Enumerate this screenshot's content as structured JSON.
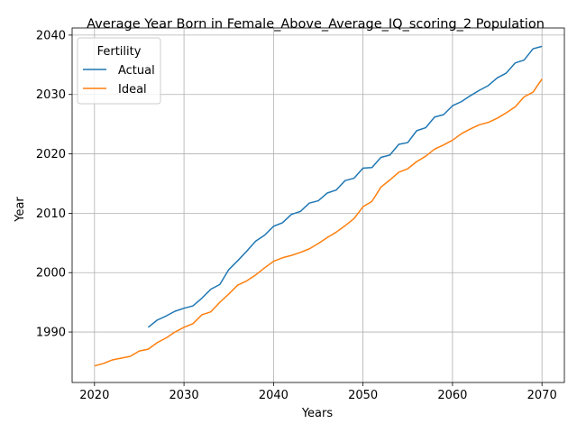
{
  "chart_data": {
    "type": "line",
    "title": "Average Year Born in Female_Above_Average_IQ_scoring_2 Population",
    "xlabel": "Years",
    "ylabel": "Year",
    "xlim": [
      2017.5,
      2072.5
    ],
    "ylim": [
      1981.5,
      2041.2
    ],
    "xticks": [
      2020,
      2030,
      2040,
      2050,
      2060,
      2070
    ],
    "yticks": [
      1990,
      2000,
      2010,
      2020,
      2030,
      2040
    ],
    "grid": true,
    "legend": {
      "title": "Fertility",
      "placement": "top-left"
    },
    "series": [
      {
        "name": "Actual",
        "color": "#1f77b4",
        "x": [
          2026,
          2027,
          2028,
          2029,
          2030,
          2031,
          2032,
          2033,
          2034,
          2035,
          2036,
          2037,
          2038,
          2039,
          2040,
          2041,
          2042,
          2043,
          2044,
          2045,
          2046,
          2047,
          2048,
          2049,
          2050,
          2051,
          2052,
          2053,
          2054,
          2055,
          2056,
          2057,
          2058,
          2059,
          2060,
          2061,
          2062,
          2063,
          2064,
          2065,
          2066,
          2067,
          2068,
          2069,
          2070
        ],
        "y": [
          1990.8,
          1992.0,
          1992.7,
          1993.5,
          1994.0,
          1994.4,
          1995.7,
          1997.2,
          1998.0,
          2000.5,
          2002.0,
          2003.6,
          2005.3,
          2006.3,
          2007.8,
          2008.4,
          2009.8,
          2010.3,
          2011.7,
          2012.1,
          2013.4,
          2013.9,
          2015.5,
          2015.9,
          2017.6,
          2017.7,
          2019.4,
          2019.8,
          2021.6,
          2021.9,
          2023.9,
          2024.4,
          2026.2,
          2026.6,
          2028.1,
          2028.8,
          2029.8,
          2030.7,
          2031.5,
          2032.8,
          2033.6,
          2035.3,
          2035.8,
          2037.7,
          2038.1
        ]
      },
      {
        "name": "Ideal",
        "color": "#ff7f0e",
        "x": [
          2020,
          2021,
          2022,
          2023,
          2024,
          2025,
          2026,
          2027,
          2028,
          2029,
          2030,
          2031,
          2032,
          2033,
          2034,
          2035,
          2036,
          2037,
          2038,
          2039,
          2040,
          2041,
          2042,
          2043,
          2044,
          2045,
          2046,
          2047,
          2048,
          2049,
          2050,
          2051,
          2052,
          2053,
          2054,
          2055,
          2056,
          2057,
          2058,
          2059,
          2060,
          2061,
          2062,
          2063,
          2064,
          2065,
          2066,
          2067,
          2068,
          2069,
          2070
        ],
        "y": [
          1984.3,
          1984.7,
          1985.3,
          1985.6,
          1985.9,
          1986.8,
          1987.1,
          1988.2,
          1989.0,
          1990.0,
          1990.8,
          1991.4,
          1992.9,
          1993.4,
          1995.0,
          1996.4,
          1997.9,
          1998.6,
          1999.6,
          2000.8,
          2001.9,
          2002.5,
          2002.9,
          2003.4,
          2004.0,
          2004.9,
          2005.9,
          2006.8,
          2007.9,
          2009.1,
          2011.1,
          2012.0,
          2014.4,
          2015.6,
          2016.9,
          2017.5,
          2018.7,
          2019.6,
          2020.8,
          2021.5,
          2022.3,
          2023.4,
          2024.2,
          2024.9,
          2025.3,
          2026.0,
          2026.9,
          2027.9,
          2029.6,
          2030.4,
          2032.6
        ]
      }
    ]
  }
}
